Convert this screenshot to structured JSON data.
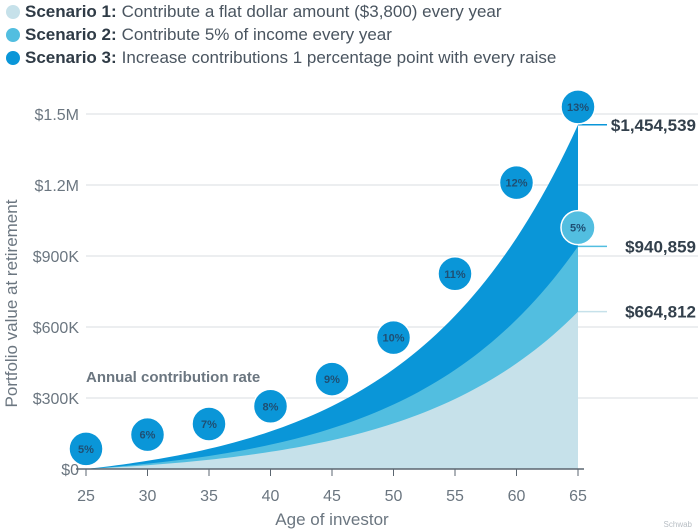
{
  "legend": [
    {
      "bold": "Scenario 1:",
      "text": "Contribute a flat dollar amount ($3,800) every year",
      "color": "#c6e1ea"
    },
    {
      "bold": "Scenario 2:",
      "text": "Contribute 5% of income every year",
      "color": "#52bee0"
    },
    {
      "bold": "Scenario 3:",
      "text": "Increase contributions 1 percentage point with every raise",
      "color": "#0a96d8"
    }
  ],
  "watermark": "Schwab",
  "chart_data": {
    "type": "area",
    "xlabel": "Age of investor",
    "ylabel": "Portfolio value at retirement",
    "x": [
      25,
      30,
      35,
      40,
      45,
      50,
      55,
      60,
      65
    ],
    "xlim": [
      25,
      65
    ],
    "ylim": [
      0,
      1600000
    ],
    "x_ticks": [
      25,
      30,
      35,
      40,
      45,
      50,
      55,
      60,
      65
    ],
    "x_tick_labels": [
      "25",
      "30",
      "35",
      "40",
      "45",
      "50",
      "55",
      "60",
      "65"
    ],
    "y_ticks": [
      0,
      300000,
      600000,
      900000,
      1200000,
      1500000
    ],
    "y_tick_labels": [
      "$0",
      "$300K",
      "$600K",
      "$900K",
      "$1.2M",
      "$1.5M"
    ],
    "grid": true,
    "series": [
      {
        "name": "Scenario 1",
        "color": "#c6e1ea",
        "final_value": 664812
      },
      {
        "name": "Scenario 2",
        "color": "#52bee0",
        "final_value": 940859
      },
      {
        "name": "Scenario 3",
        "color": "#0a96d8",
        "final_value": 1454539
      }
    ],
    "end_labels": [
      "$664,812",
      "$940,859",
      "$1,454,539"
    ],
    "annotation": "Annual contribution rate",
    "rate_markers": [
      {
        "age": 25,
        "value": 85000,
        "label": "5%"
      },
      {
        "age": 30,
        "value": 145000,
        "label": "6%"
      },
      {
        "age": 35,
        "value": 190000,
        "label": "7%"
      },
      {
        "age": 40,
        "value": 265000,
        "label": "8%"
      },
      {
        "age": 45,
        "value": 380000,
        "label": "9%"
      },
      {
        "age": 50,
        "value": 555000,
        "label": "10%"
      },
      {
        "age": 55,
        "value": 825000,
        "label": "11%"
      },
      {
        "age": 60,
        "value": 1210000,
        "label": "12%"
      },
      {
        "age": 65,
        "value": 1530000,
        "label": "13%"
      },
      {
        "age": 65,
        "value": 1020000,
        "label": "5%"
      }
    ]
  }
}
